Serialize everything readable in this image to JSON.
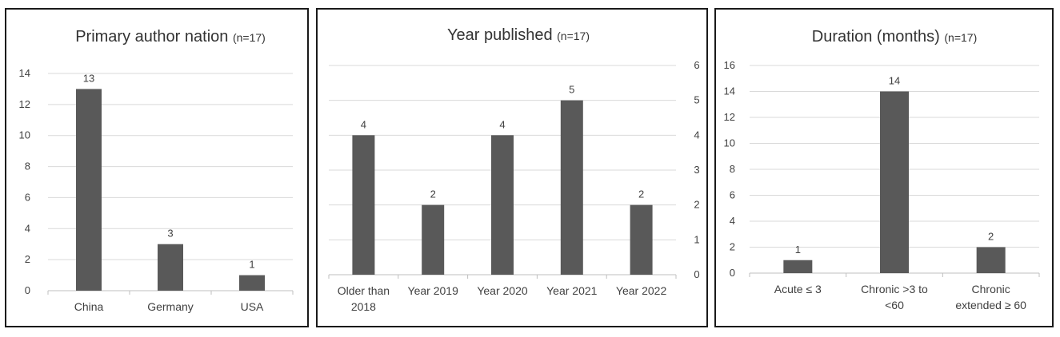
{
  "colors": {
    "bar": "#595959",
    "grid": "#d9d9d9",
    "axis": "#bfbfbf",
    "border": "#1a1a1a"
  },
  "chart_data": [
    {
      "type": "bar",
      "title": "Primary author nation",
      "subtitle": "(n=17)",
      "categories": [
        [
          "China"
        ],
        [
          "Germany"
        ],
        [
          "USA"
        ]
      ],
      "values": [
        13,
        3,
        1
      ],
      "data_labels": [
        "13",
        "3",
        "1"
      ],
      "ylim": [
        0,
        14
      ],
      "yticks": [
        "0",
        "2",
        "4",
        "6",
        "8",
        "10",
        "12",
        "14"
      ],
      "y_axis_side": "left",
      "grid": true
    },
    {
      "type": "bar",
      "title": "Year published",
      "subtitle": "(n=17)",
      "categories": [
        [
          "Older than",
          "2018"
        ],
        [
          "Year 2019"
        ],
        [
          "Year 2020"
        ],
        [
          "Year 2021"
        ],
        [
          "Year 2022"
        ]
      ],
      "values": [
        4,
        2,
        4,
        5,
        2
      ],
      "data_labels": [
        "4",
        "2",
        "4",
        "5",
        "2"
      ],
      "ylim": [
        0,
        6
      ],
      "yticks": [
        "0",
        "1",
        "2",
        "3",
        "4",
        "5",
        "6"
      ],
      "y_axis_side": "right",
      "grid": true
    },
    {
      "type": "bar",
      "title": "Duration (months)",
      "subtitle": "(n=17)",
      "categories": [
        [
          "Acute ≤ 3"
        ],
        [
          "Chronic >3 to",
          "<60"
        ],
        [
          "Chronic",
          "extended ≥ 60"
        ]
      ],
      "values": [
        1,
        14,
        2
      ],
      "data_labels": [
        "1",
        "14",
        "2"
      ],
      "ylim": [
        0,
        16
      ],
      "yticks": [
        "0",
        "2",
        "4",
        "6",
        "8",
        "10",
        "12",
        "14",
        "16"
      ],
      "y_axis_side": "left",
      "grid": true
    }
  ]
}
